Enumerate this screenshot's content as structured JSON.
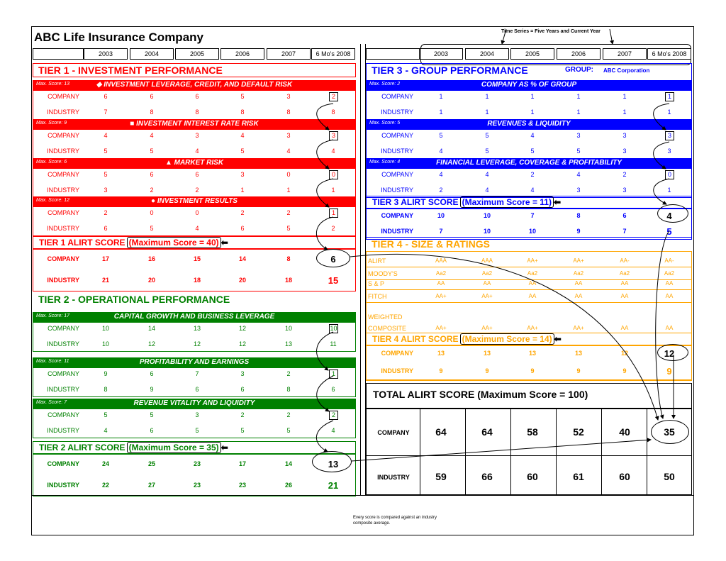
{
  "title": "ABC Life Insurance Company",
  "time_series_label": "Time Series = Five Years and Current Year",
  "years": [
    "2003",
    "2004",
    "2005",
    "2006",
    "2007",
    "6 Mo's 2008"
  ],
  "note": "Every score is compared against an industry composite average.",
  "colors": {
    "tier1": "#ff0000",
    "tier2": "#008000",
    "tier3": "#0000ff",
    "tier4": "#ffa500"
  },
  "tier1": {
    "title": "TIER 1 - INVESTMENT PERFORMANCE",
    "sections": [
      {
        "max": "Max. Score: 13",
        "name": "◆ INVESTMENT LEVERAGE, CREDIT, AND DEFAULT RISK",
        "company": [
          "6",
          "6",
          "6",
          "5",
          "3",
          "2"
        ],
        "industry": [
          "7",
          "8",
          "8",
          "8",
          "8",
          "8"
        ]
      },
      {
        "max": "Max. Score: 9",
        "name": "■ INVESTMENT INTEREST RATE RISK",
        "company": [
          "4",
          "4",
          "3",
          "4",
          "3",
          "3"
        ],
        "industry": [
          "5",
          "5",
          "4",
          "5",
          "4",
          "4"
        ]
      },
      {
        "max": "Max. Score: 6",
        "name": "▲ MARKET RISK",
        "company": [
          "5",
          "6",
          "6",
          "3",
          "0",
          "0"
        ],
        "industry": [
          "3",
          "2",
          "2",
          "1",
          "1",
          "1"
        ]
      },
      {
        "max": "Max. Score: 12",
        "name": "● INVESTMENT RESULTS",
        "company": [
          "2",
          "0",
          "0",
          "2",
          "2",
          "1"
        ],
        "industry": [
          "6",
          "5",
          "4",
          "6",
          "5",
          "2"
        ]
      }
    ],
    "score_label": "TIER 1 ALIRT SCORE",
    "max_label": "(Maximum Score = 40)",
    "score": {
      "company": [
        "17",
        "16",
        "15",
        "14",
        "8",
        "6"
      ],
      "industry": [
        "21",
        "20",
        "18",
        "20",
        "18",
        "15"
      ]
    }
  },
  "tier2": {
    "title": "TIER 2 - OPERATIONAL PERFORMANCE",
    "sections": [
      {
        "max": "Max. Score: 17",
        "name": "CAPITAL GROWTH AND BUSINESS LEVERAGE",
        "company": [
          "10",
          "14",
          "13",
          "12",
          "10",
          "10"
        ],
        "industry": [
          "10",
          "12",
          "12",
          "12",
          "13",
          "11"
        ]
      },
      {
        "max": "Max. Score: 11",
        "name": "PROFITABILITY AND EARNINGS",
        "company": [
          "9",
          "6",
          "7",
          "3",
          "2",
          "1"
        ],
        "industry": [
          "8",
          "9",
          "6",
          "6",
          "8",
          "6"
        ]
      },
      {
        "max": "Max. Score: 7",
        "name": "REVENUE VITALITY AND LIQUIDITY",
        "company": [
          "5",
          "5",
          "3",
          "2",
          "2",
          "2"
        ],
        "industry": [
          "4",
          "6",
          "5",
          "5",
          "5",
          "4"
        ]
      }
    ],
    "score_label": "TIER 2 ALIRT SCORE",
    "max_label": "(Maximum Score = 35)",
    "score": {
      "company": [
        "24",
        "25",
        "23",
        "17",
        "14",
        "13"
      ],
      "industry": [
        "22",
        "27",
        "23",
        "23",
        "26",
        "21"
      ]
    }
  },
  "tier3": {
    "title": "TIER 3 - GROUP PERFORMANCE",
    "group_label": "GROUP:",
    "group_name": "ABC Corporation",
    "sections": [
      {
        "max": "Max. Score: 2",
        "name": "COMPANY AS % OF GROUP",
        "company": [
          "1",
          "1",
          "1",
          "1",
          "1",
          "1"
        ],
        "industry": [
          "1",
          "1",
          "1",
          "1",
          "1",
          "1"
        ]
      },
      {
        "max": "Max. Score: 5",
        "name": "REVENUES & LIQUIDITY",
        "company": [
          "5",
          "5",
          "4",
          "3",
          "3",
          "3"
        ],
        "industry": [
          "4",
          "5",
          "5",
          "5",
          "3",
          "3"
        ]
      },
      {
        "max": "Max. Score: 4",
        "name": "FINANCIAL LEVERAGE, COVERAGE & PROFITABILITY",
        "company": [
          "4",
          "4",
          "2",
          "4",
          "2",
          "0"
        ],
        "industry": [
          "2",
          "4",
          "4",
          "3",
          "3",
          "1"
        ]
      }
    ],
    "score_label": "TIER 3 ALIRT SCORE",
    "max_label": "(Maximum Score = 11)",
    "score": {
      "company": [
        "10",
        "10",
        "7",
        "8",
        "6",
        "4"
      ],
      "industry": [
        "7",
        "10",
        "10",
        "9",
        "7",
        "5"
      ]
    }
  },
  "tier4": {
    "title": "TIER 4 - SIZE & RATINGS",
    "ratings": [
      {
        "label": "ALIRT",
        "values": [
          "AAA",
          "AAA",
          "AA+",
          "AA+",
          "AA-",
          "AA-"
        ]
      },
      {
        "label": "MOODY'S",
        "values": [
          "Aa2",
          "Aa2",
          "Aa2",
          "Aa2",
          "Aa2",
          "Aa2"
        ]
      },
      {
        "label": "S & P",
        "values": [
          "AA",
          "AA",
          "AA",
          "AA",
          "AA",
          "AA"
        ]
      },
      {
        "label": "FITCH",
        "values": [
          "AA+",
          "AA+",
          "AA",
          "AA",
          "AA",
          "AA"
        ]
      }
    ],
    "weighted_label_1": "WEIGHTED",
    "weighted_label_2": "COMPOSITE",
    "weighted": [
      "AA+",
      "AA+",
      "AA+",
      "AA+",
      "AA",
      "AA"
    ],
    "score_label": "TIER 4 ALIRT SCORE",
    "max_label": "(Maximum Score = 14)",
    "score": {
      "company": [
        "13",
        "13",
        "13",
        "13",
        "12",
        "12"
      ],
      "industry": [
        "9",
        "9",
        "9",
        "9",
        "9",
        "9"
      ]
    }
  },
  "total": {
    "label": "TOTAL ALIRT SCORE (Maximum Score = 100)",
    "company": [
      "64",
      "64",
      "58",
      "52",
      "40",
      "35"
    ],
    "industry": [
      "59",
      "66",
      "60",
      "61",
      "60",
      "50"
    ]
  },
  "labels": {
    "company": "COMPANY",
    "industry": "INDUSTRY"
  }
}
